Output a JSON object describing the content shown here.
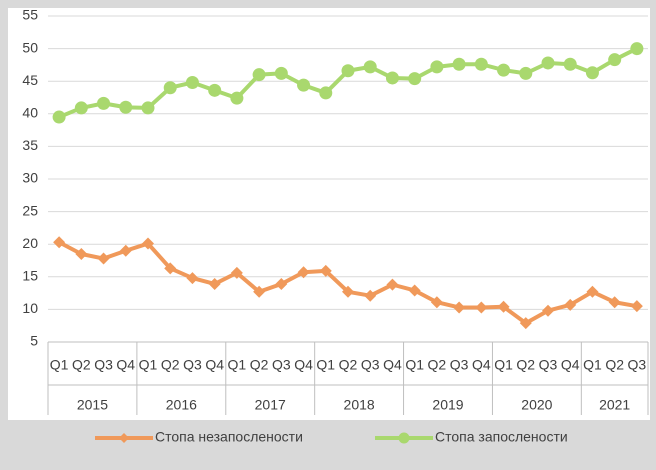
{
  "chart_data": {
    "type": "line",
    "categories": [
      "Q1",
      "Q2",
      "Q3",
      "Q4",
      "Q1",
      "Q2",
      "Q3",
      "Q4",
      "Q1",
      "Q2",
      "Q3",
      "Q4",
      "Q1",
      "Q2",
      "Q3",
      "Q4",
      "Q1",
      "Q2",
      "Q3",
      "Q4",
      "Q1",
      "Q2",
      "Q3",
      "Q4",
      "Q1",
      "Q2",
      "Q3"
    ],
    "category_groups": [
      {
        "label": "2015",
        "size": 4
      },
      {
        "label": "2016",
        "size": 4
      },
      {
        "label": "2017",
        "size": 4
      },
      {
        "label": "2018",
        "size": 4
      },
      {
        "label": "2019",
        "size": 4
      },
      {
        "label": "2020",
        "size": 4
      },
      {
        "label": "2021",
        "size": 3
      }
    ],
    "series": [
      {
        "name": "Стопа незапослености",
        "color": "#f0995a",
        "marker": "diamond",
        "values": [
          20.3,
          18.5,
          17.8,
          19.0,
          20.1,
          16.3,
          14.8,
          13.9,
          15.6,
          12.7,
          13.9,
          15.7,
          15.9,
          12.7,
          12.1,
          13.8,
          12.9,
          11.1,
          10.3,
          10.3,
          10.4,
          7.9,
          9.8,
          10.7,
          12.7,
          11.1,
          10.5
        ]
      },
      {
        "name": "Стопа запослености",
        "color": "#a9d86e",
        "marker": "circle",
        "values": [
          39.5,
          40.9,
          41.6,
          41.0,
          40.9,
          44.0,
          44.8,
          43.6,
          42.4,
          46.0,
          46.2,
          44.4,
          43.2,
          46.6,
          47.2,
          45.5,
          45.4,
          47.2,
          47.6,
          47.6,
          46.7,
          46.2,
          47.8,
          47.6,
          46.3,
          48.3,
          50.0
        ]
      }
    ],
    "ylim": [
      5,
      55
    ],
    "yticks": [
      5,
      10,
      15,
      20,
      25,
      30,
      35,
      40,
      45,
      50,
      55
    ],
    "grid": true,
    "legend": "bottom"
  }
}
